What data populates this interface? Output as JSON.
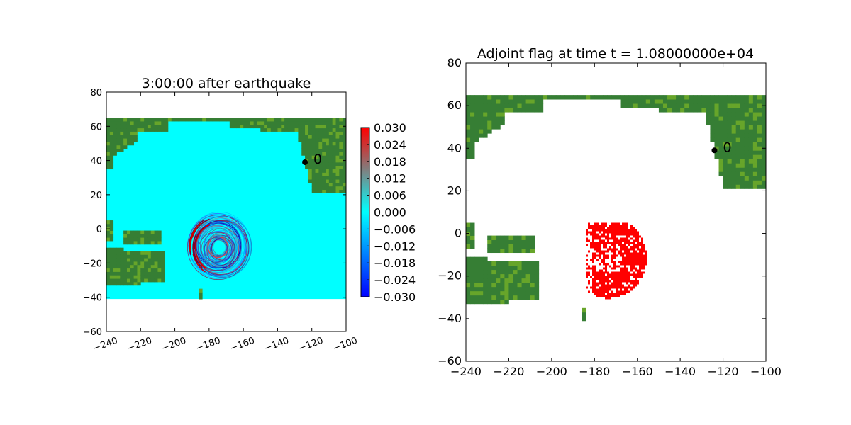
{
  "colors": {
    "land": "#367e34",
    "land_light": "#67a52a",
    "ocean": "#00ffff",
    "flag": "#ff0000",
    "station": "#000000"
  },
  "chart_data": [
    {
      "type": "heatmap",
      "title": "3:00:00 after earthquake",
      "xlim": [
        -240,
        -100
      ],
      "ylim": [
        -60,
        80
      ],
      "xticks": [
        "−240",
        "−220",
        "−200",
        "−180",
        "−160",
        "−140",
        "−120",
        "−100"
      ],
      "xtick_values": [
        -240,
        -220,
        -200,
        -180,
        -160,
        -140,
        -120,
        -100
      ],
      "yticks": [
        "−60",
        "−40",
        "−20",
        "0",
        "20",
        "40",
        "60",
        "80"
      ],
      "ytick_values": [
        -60,
        -40,
        -20,
        0,
        20,
        40,
        60,
        80
      ],
      "data_extent": {
        "lat": [
          -41,
          65
        ],
        "lon": [
          -240,
          -100
        ]
      },
      "colorbar": {
        "range": [
          -0.03,
          0.03
        ],
        "colors": [
          "#0000ff",
          "#00ffff",
          "#ff0000"
        ],
        "tick_values": [
          0.03,
          0.024,
          0.018,
          0.012,
          0.006,
          0.0,
          -0.006,
          -0.012,
          -0.018,
          -0.024,
          -0.03
        ],
        "tick_labels": [
          "0.030",
          "0.024",
          "0.018",
          "0.012",
          "0.006",
          "0.000",
          "−0.006",
          "−0.012",
          "−0.018",
          "−0.024",
          "−0.030"
        ]
      },
      "wave": {
        "center_lon": -174,
        "center_lat": -11,
        "radius_lon": 18,
        "radius_lat": 19
      },
      "station": {
        "label": "0",
        "lon": -124,
        "lat": 39
      }
    },
    {
      "type": "heatmap",
      "title": "Adjoint flag at time t = 1.08000000e+04",
      "xlim": [
        -240,
        -100
      ],
      "ylim": [
        -60,
        80
      ],
      "xticks": [
        "−240",
        "−220",
        "−200",
        "−180",
        "−160",
        "−140",
        "−120",
        "−100"
      ],
      "xtick_values": [
        -240,
        -220,
        -200,
        -180,
        -160,
        -140,
        -120,
        -100
      ],
      "yticks": [
        "−60",
        "−40",
        "−20",
        "0",
        "20",
        "40",
        "60",
        "80"
      ],
      "ytick_values": [
        -60,
        -40,
        -20,
        0,
        20,
        40,
        60,
        80
      ],
      "data_extent": {
        "lat": [
          -41,
          65
        ],
        "lon": [
          -240,
          -100
        ]
      },
      "flag_region": {
        "center_lon": -174,
        "center_lat": -11,
        "radius_lon": 18,
        "radius_lat": 19,
        "lon_min": -185,
        "lat_max": 6
      },
      "station": {
        "label": "0",
        "lon": -124,
        "lat": 39
      }
    }
  ]
}
